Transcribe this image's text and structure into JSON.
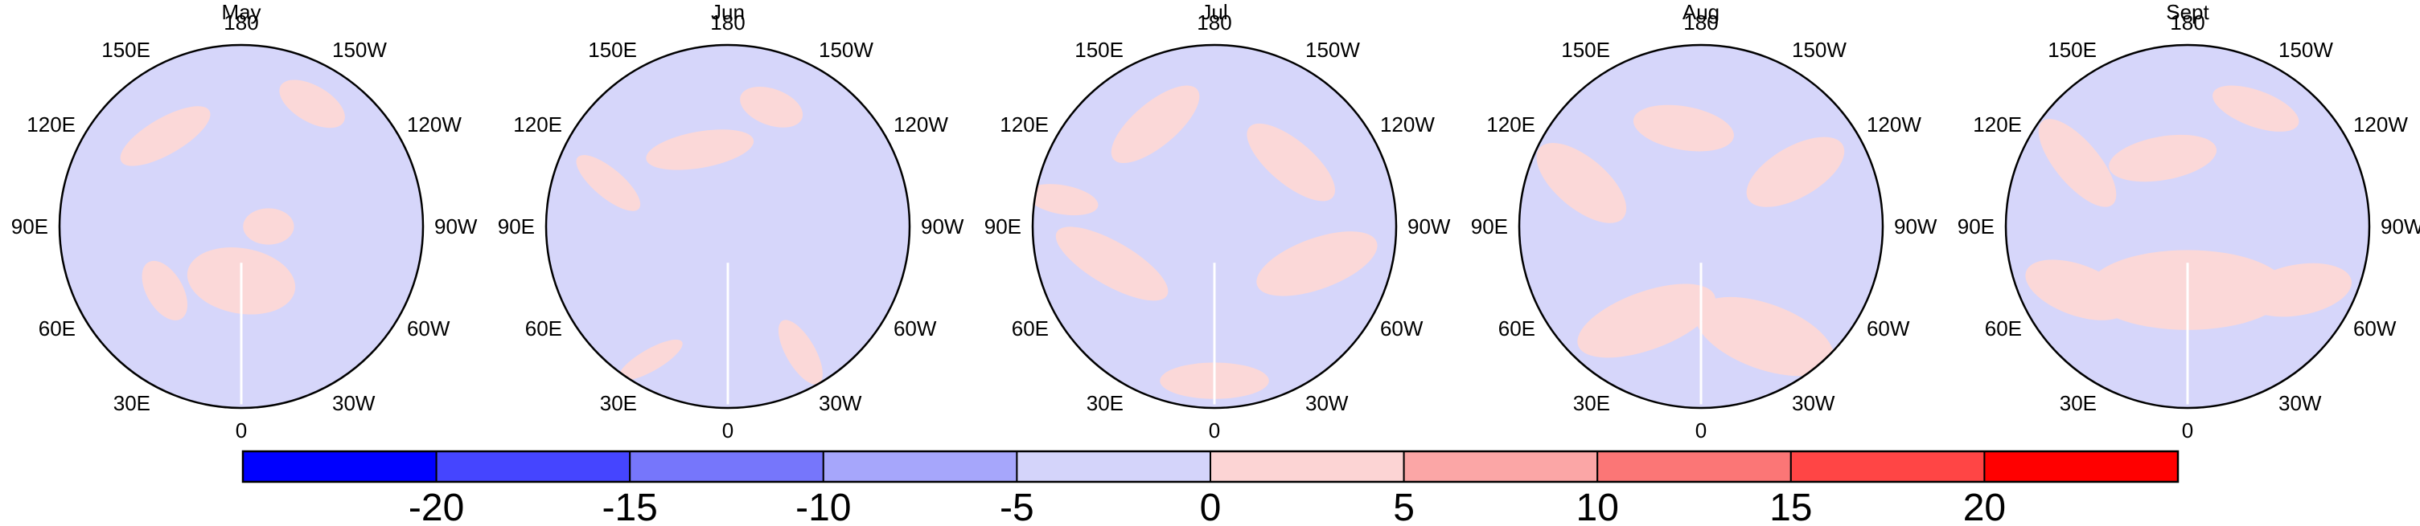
{
  "title": "",
  "panels": [
    {
      "title": "May",
      "pink_lobes": [
        {
          "angle": 90,
          "r": 0.3,
          "rx": 0.3,
          "ry": 0.18,
          "rot": 10
        },
        {
          "angle": 230,
          "r": 0.65,
          "rx": 0.28,
          "ry": 0.1,
          "rot": -30
        },
        {
          "angle": 300,
          "r": 0.78,
          "rx": 0.2,
          "ry": 0.1,
          "rot": 30
        },
        {
          "angle": 140,
          "r": 0.55,
          "rx": 0.18,
          "ry": 0.1,
          "rot": 60
        },
        {
          "angle": 0,
          "r": 0.15,
          "rx": 0.14,
          "ry": 0.1,
          "rot": 0
        }
      ]
    },
    {
      "title": "Jun",
      "pink_lobes": [
        {
          "angle": 60,
          "r": 0.8,
          "rx": 0.2,
          "ry": 0.08,
          "rot": 60
        },
        {
          "angle": 250,
          "r": 0.45,
          "rx": 0.3,
          "ry": 0.1,
          "rot": -10
        },
        {
          "angle": 290,
          "r": 0.7,
          "rx": 0.18,
          "ry": 0.1,
          "rot": 20
        },
        {
          "angle": 200,
          "r": 0.7,
          "rx": 0.22,
          "ry": 0.08,
          "rot": 40
        },
        {
          "angle": 120,
          "r": 0.85,
          "rx": 0.2,
          "ry": 0.06,
          "rot": -30
        }
      ]
    },
    {
      "title": "Jul",
      "pink_lobes": [
        {
          "angle": 90,
          "r": 0.85,
          "rx": 0.3,
          "ry": 0.1,
          "rot": 0
        },
        {
          "angle": 20,
          "r": 0.6,
          "rx": 0.35,
          "ry": 0.14,
          "rot": -20
        },
        {
          "angle": 160,
          "r": 0.6,
          "rx": 0.35,
          "ry": 0.12,
          "rot": 30
        },
        {
          "angle": 240,
          "r": 0.65,
          "rx": 0.3,
          "ry": 0.12,
          "rot": -40
        },
        {
          "angle": 320,
          "r": 0.55,
          "rx": 0.3,
          "ry": 0.12,
          "rot": 40
        },
        {
          "angle": 190,
          "r": 0.85,
          "rx": 0.2,
          "ry": 0.08,
          "rot": 10
        }
      ]
    },
    {
      "title": "Aug",
      "pink_lobes": [
        {
          "angle": 60,
          "r": 0.7,
          "rx": 0.4,
          "ry": 0.18,
          "rot": 20
        },
        {
          "angle": 120,
          "r": 0.6,
          "rx": 0.4,
          "ry": 0.16,
          "rot": -20
        },
        {
          "angle": 200,
          "r": 0.7,
          "rx": 0.3,
          "ry": 0.14,
          "rot": 40
        },
        {
          "angle": 330,
          "r": 0.6,
          "rx": 0.3,
          "ry": 0.14,
          "rot": -30
        },
        {
          "angle": 260,
          "r": 0.55,
          "rx": 0.28,
          "ry": 0.12,
          "rot": 10
        }
      ]
    },
    {
      "title": "Sept",
      "pink_lobes": [
        {
          "angle": 90,
          "r": 0.35,
          "rx": 0.55,
          "ry": 0.22,
          "rot": 0
        },
        {
          "angle": 30,
          "r": 0.7,
          "rx": 0.3,
          "ry": 0.14,
          "rot": -10
        },
        {
          "angle": 150,
          "r": 0.7,
          "rx": 0.3,
          "ry": 0.14,
          "rot": 20
        },
        {
          "angle": 210,
          "r": 0.7,
          "rx": 0.3,
          "ry": 0.12,
          "rot": 50
        },
        {
          "angle": 300,
          "r": 0.75,
          "rx": 0.25,
          "ry": 0.1,
          "rot": 20
        },
        {
          "angle": 250,
          "r": 0.4,
          "rx": 0.3,
          "ry": 0.12,
          "rot": -10
        }
      ]
    }
  ],
  "longitude_labels": [
    {
      "label": "180",
      "lon": 180
    },
    {
      "label": "150E",
      "lon": 150
    },
    {
      "label": "120E",
      "lon": 120
    },
    {
      "label": "90E",
      "lon": 90
    },
    {
      "label": "60E",
      "lon": 60
    },
    {
      "label": "30E",
      "lon": 30
    },
    {
      "label": "0",
      "lon": 0
    },
    {
      "label": "30W",
      "lon": -30
    },
    {
      "label": "60W",
      "lon": -60
    },
    {
      "label": "90W",
      "lon": -90
    },
    {
      "label": "120W",
      "lon": -120
    },
    {
      "label": "150W",
      "lon": -150
    }
  ],
  "colorbar": {
    "levels": [
      -25,
      -20,
      -15,
      -10,
      -5,
      0,
      5,
      10,
      15,
      20,
      25
    ],
    "tick_labels": [
      "-20",
      "-15",
      "-10",
      "-5",
      "0",
      "5",
      "10",
      "15",
      "20"
    ],
    "colors": [
      "#0000ff",
      "#4545ff",
      "#7676fb",
      "#a6a6fb",
      "#d4d4fa",
      "#fcd4d4",
      "#fba6a6",
      "#fb7676",
      "#ff4545",
      "#ff0000"
    ]
  },
  "field_colors": {
    "negative": "#d6d6fa",
    "positive": "#fbd8d8",
    "coast": "#000000"
  }
}
